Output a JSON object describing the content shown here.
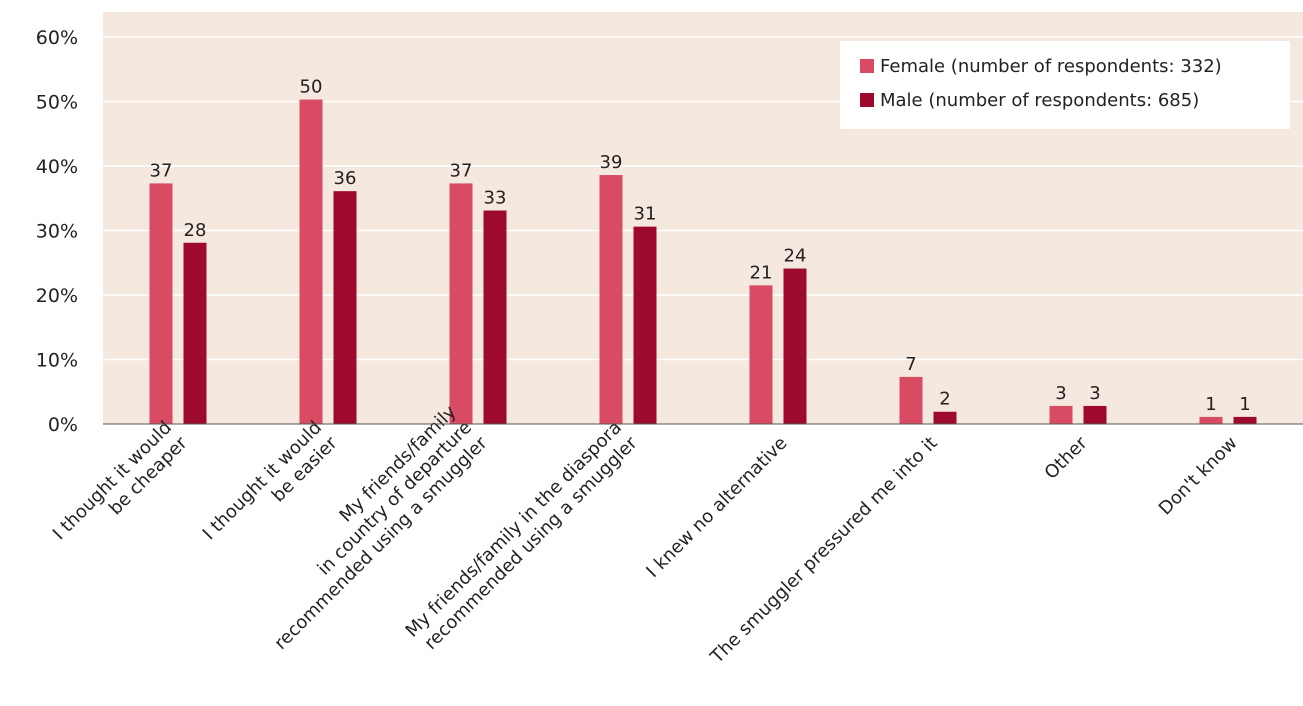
{
  "chart_data": {
    "type": "bar",
    "categories": [
      [
        "I thought it would",
        "be cheaper"
      ],
      [
        "I thought it would",
        "be easier"
      ],
      [
        "My friends/family",
        "in country of departure",
        "recommended using a smuggler"
      ],
      [
        "My friends/family in the diaspora",
        "recommended using a smuggler"
      ],
      [
        "I knew no alternative"
      ],
      [
        "The smuggler pressured me into it"
      ],
      [
        "Other"
      ],
      [
        "Don't know"
      ]
    ],
    "series": [
      {
        "name": "Female (number of respondents: 332)",
        "color": "#d94a63",
        "values": [
          37.3,
          50.3,
          37.3,
          38.6,
          21.5,
          7.3,
          2.8,
          1.1
        ]
      },
      {
        "name": "Male (number of respondents: 685)",
        "color": "#9e0a2e",
        "values": [
          28.1,
          36.1,
          33.1,
          30.6,
          24.1,
          1.9,
          2.8,
          1.1
        ]
      }
    ],
    "data_labels": [
      [
        "37",
        "50",
        "37",
        "39",
        "21",
        "7",
        "3",
        "1"
      ],
      [
        "28",
        "36",
        "33",
        "31",
        "24",
        "2",
        "3",
        "1"
      ]
    ],
    "ylim": [
      0,
      60
    ],
    "yticks": [
      0,
      10,
      20,
      30,
      40,
      50,
      60
    ],
    "ytick_labels": [
      "0%",
      "10%",
      "20%",
      "30%",
      "40%",
      "50%",
      "60%"
    ],
    "xlabel": "",
    "ylabel": "",
    "title": "",
    "grid": true,
    "legend_position": "top-right",
    "plot_background": "#f5e8df"
  }
}
